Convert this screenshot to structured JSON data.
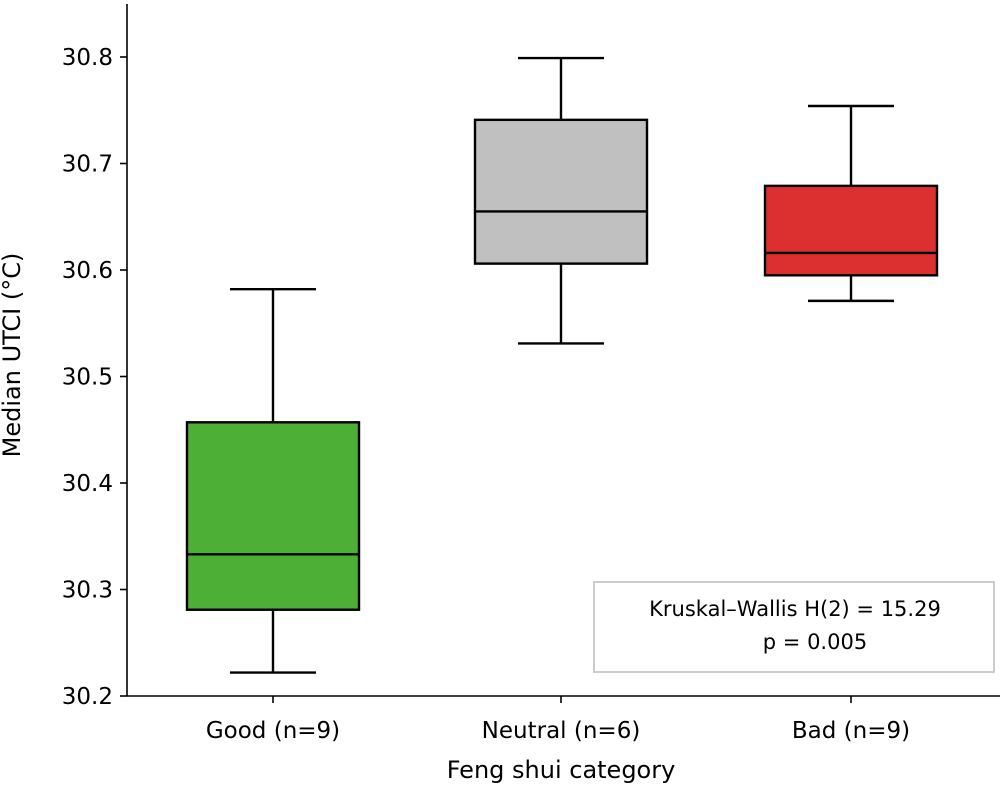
{
  "chart_data": {
    "type": "box",
    "title": "",
    "xlabel": "Feng shui category",
    "ylabel": "Median UTCI (°C)",
    "ylim": [
      30.2,
      30.85
    ],
    "yticks": [
      "30.2",
      "30.3",
      "30.4",
      "30.5",
      "30.6",
      "30.7",
      "30.8"
    ],
    "categories": [
      "Good (n=9)",
      "Neutral (n=6)",
      "Bad (n=9)"
    ],
    "boxes": [
      {
        "label": "Good (n=9)",
        "whisker_low": 30.222,
        "q1": 30.281,
        "median": 30.333,
        "q3": 30.457,
        "whisker_high": 30.582,
        "color": "#4daf35"
      },
      {
        "label": "Neutral (n=6)",
        "whisker_low": 30.531,
        "q1": 30.606,
        "median": 30.655,
        "q3": 30.741,
        "whisker_high": 30.799,
        "color": "#c0c0c0"
      },
      {
        "label": "Bad (n=9)",
        "whisker_low": 30.571,
        "q1": 30.595,
        "median": 30.616,
        "q3": 30.679,
        "whisker_high": 30.754,
        "color": "#dc3030"
      }
    ],
    "annotation": {
      "line1": "Kruskal–Wallis H(2) = 15.29",
      "line2": "p = 0.005",
      "position": "lower-right"
    },
    "grid": false
  }
}
